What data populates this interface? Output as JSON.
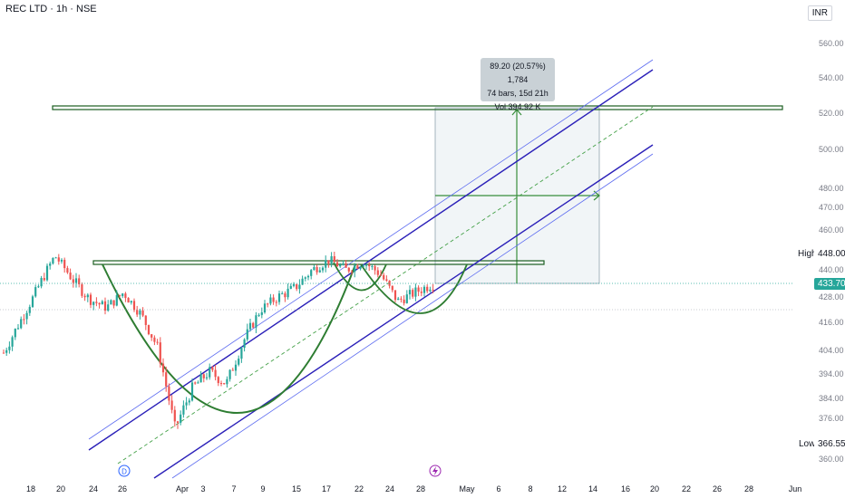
{
  "header": {
    "symbol_title": "REC LTD · 1h · NSE",
    "currency": "INR"
  },
  "price_axis": {
    "ticks": [
      "560.00",
      "540.00",
      "520.00",
      "500.00",
      "480.00",
      "470.00",
      "460.00",
      "440.00",
      "428.00",
      "416.00",
      "404.00",
      "394.00",
      "384.00",
      "376.00",
      "360.00"
    ],
    "high_label": "High",
    "high_value": "448.00",
    "low_label": "Low",
    "low_value": "366.55",
    "last_price": "433.70"
  },
  "time_axis": {
    "ticks": [
      "18",
      "20",
      "24",
      "26",
      "Apr",
      "3",
      "7",
      "9",
      "15",
      "17",
      "22",
      "24",
      "28",
      "May",
      "6",
      "8",
      "12",
      "14",
      "16",
      "20",
      "22",
      "26",
      "28",
      "Jun"
    ]
  },
  "measure": {
    "line1": "89.20 (20.57%) 1,784",
    "line2": "74 bars, 15d 21h",
    "line3": "Vol 394.92 K"
  },
  "markers": {
    "dividend": "D"
  },
  "chart_data": {
    "type": "candlestick",
    "title": "REC LTD · 1h · NSE",
    "currency": "INR",
    "timeframe": "1h",
    "y_axis_ticks": [
      560,
      540,
      520,
      500,
      480,
      470,
      460,
      440,
      428,
      416,
      404,
      394,
      384,
      376,
      360
    ],
    "y_scale": "log",
    "y_range": [
      355,
      570
    ],
    "x_axis_ticks": [
      "18",
      "20",
      "24",
      "26",
      "Apr",
      "3",
      "7",
      "9",
      "15",
      "17",
      "22",
      "24",
      "28",
      "May",
      "6",
      "8",
      "12",
      "14",
      "16",
      "20",
      "22",
      "26",
      "28",
      "Jun"
    ],
    "high": 448.0,
    "low": 366.55,
    "last": 433.7,
    "price_path": [
      [
        "18",
        403
      ],
      [
        "20",
        417
      ],
      [
        "24",
        432
      ],
      [
        "25",
        447
      ],
      [
        "26",
        436
      ],
      [
        "Apr",
        427
      ],
      [
        "2",
        423
      ],
      [
        "3",
        430
      ],
      [
        "4",
        420
      ],
      [
        "5",
        405
      ],
      [
        "7",
        372
      ],
      [
        "8",
        388
      ],
      [
        "9",
        395
      ],
      [
        "11",
        390
      ],
      [
        "15",
        408
      ],
      [
        "16",
        422
      ],
      [
        "17",
        428
      ],
      [
        "18",
        432
      ],
      [
        "21",
        440
      ],
      [
        "22",
        445
      ],
      [
        "23",
        440
      ],
      [
        "24",
        444
      ],
      [
        "25",
        438
      ],
      [
        "26",
        426
      ],
      [
        "28",
        430
      ],
      [
        "29",
        433.7
      ]
    ],
    "measure": {
      "change": 89.2,
      "change_pct": 20.57,
      "ticks": 1784,
      "bars": 74,
      "duration": "15d 21h",
      "volume": "394.92K"
    },
    "drawings": [
      "horizontal resistance zone ~446",
      "horizontal target zone ~522",
      "ascending parallel channel",
      "cup and handle arcs",
      "price-range measurement box"
    ]
  }
}
